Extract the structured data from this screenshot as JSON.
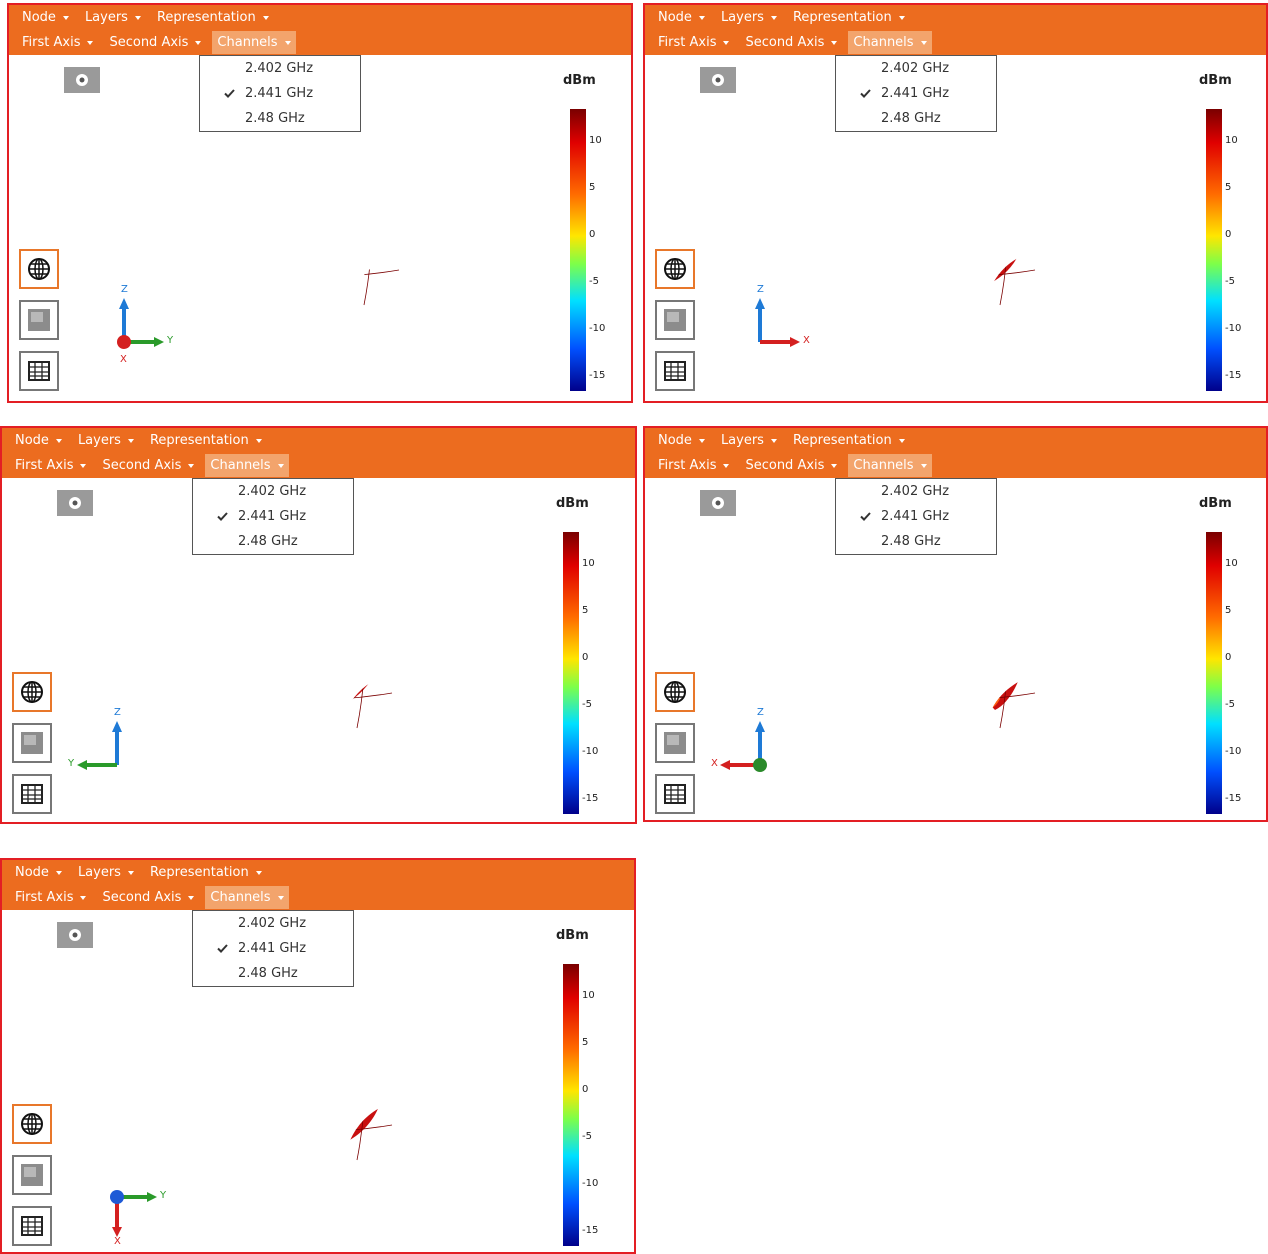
{
  "panels": [
    {
      "menu_row1": [
        "Node",
        "Layers",
        "Representation"
      ],
      "menu_row2": [
        "First Axis",
        "Second Axis",
        "Channels"
      ],
      "channels": [
        {
          "label": "2.402 GHz",
          "checked": false
        },
        {
          "label": "2.441 GHz",
          "checked": true
        },
        {
          "label": "2.48 GHz",
          "checked": false
        }
      ],
      "colorbar_title": "dBm",
      "colorbar_ticks": [
        10,
        5,
        0,
        -5,
        -10,
        -15
      ],
      "axis_labels": [
        "Z",
        "Y",
        "X"
      ]
    },
    {
      "menu_row1": [
        "Node",
        "Layers",
        "Representation"
      ],
      "menu_row2": [
        "First Axis",
        "Second Axis",
        "Channels"
      ],
      "channels": [
        {
          "label": "2.402 GHz",
          "checked": false
        },
        {
          "label": "2.441 GHz",
          "checked": true
        },
        {
          "label": "2.48 GHz",
          "checked": false
        }
      ],
      "colorbar_title": "dBm",
      "colorbar_ticks": [
        10,
        5,
        0,
        -5,
        -10,
        -15
      ],
      "axis_labels": [
        "Z",
        "X"
      ]
    },
    {
      "menu_row1": [
        "Node",
        "Layers",
        "Representation"
      ],
      "menu_row2": [
        "First Axis",
        "Second Axis",
        "Channels"
      ],
      "channels": [
        {
          "label": "2.402 GHz",
          "checked": false
        },
        {
          "label": "2.441 GHz",
          "checked": true
        },
        {
          "label": "2.48 GHz",
          "checked": false
        }
      ],
      "colorbar_title": "dBm",
      "colorbar_ticks": [
        10,
        5,
        0,
        -5,
        -10,
        -15
      ],
      "axis_labels": [
        "Z",
        "Y"
      ]
    },
    {
      "menu_row1": [
        "Node",
        "Layers",
        "Representation"
      ],
      "menu_row2": [
        "First Axis",
        "Second Axis",
        "Channels"
      ],
      "channels": [
        {
          "label": "2.402 GHz",
          "checked": false
        },
        {
          "label": "2.441 GHz",
          "checked": true
        },
        {
          "label": "2.48 GHz",
          "checked": false
        }
      ],
      "colorbar_title": "dBm",
      "colorbar_ticks": [
        10,
        5,
        0,
        -5,
        -10,
        -15
      ],
      "axis_labels": [
        "Z",
        "X"
      ]
    },
    {
      "menu_row1": [
        "Node",
        "Layers",
        "Representation"
      ],
      "menu_row2": [
        "First Axis",
        "Second Axis",
        "Channels"
      ],
      "channels": [
        {
          "label": "2.402 GHz",
          "checked": false
        },
        {
          "label": "2.441 GHz",
          "checked": true
        },
        {
          "label": "2.48 GHz",
          "checked": false
        }
      ],
      "colorbar_title": "dBm",
      "colorbar_ticks": [
        10,
        5,
        0,
        -5,
        -10,
        -15
      ],
      "axis_labels": [
        "Y",
        "X"
      ]
    }
  ]
}
